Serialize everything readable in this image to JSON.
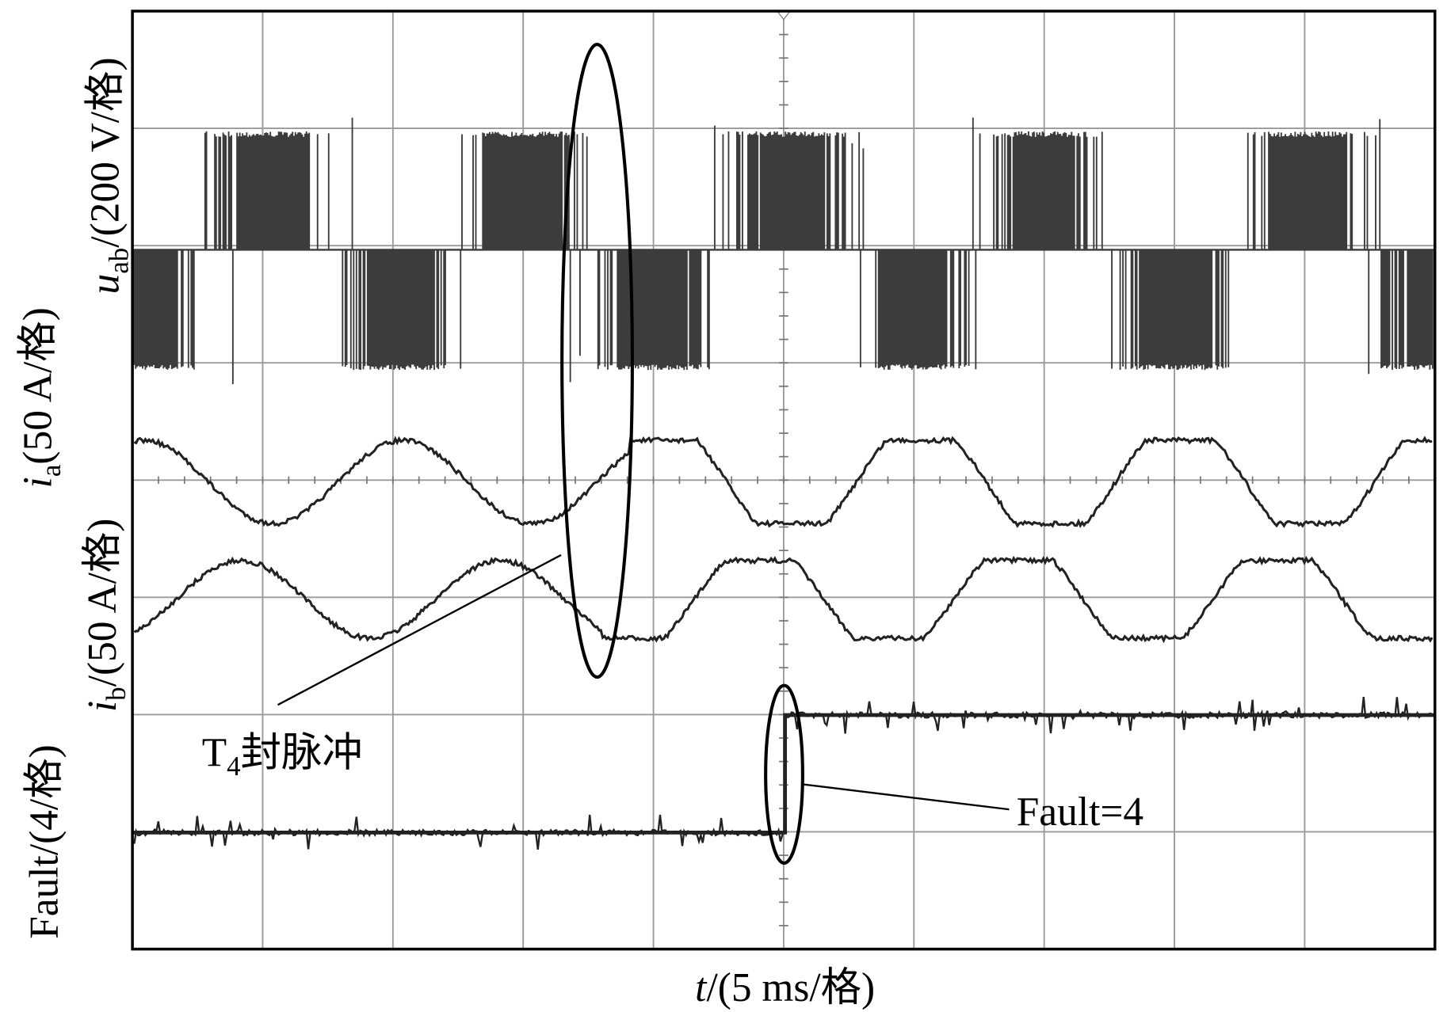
{
  "labels": {
    "uab": {
      "symbol": "u",
      "sub": "ab",
      "unit": "/(200 V/格)"
    },
    "ia": {
      "symbol": "i",
      "sub": "a",
      "unit": "(50 A/格)"
    },
    "ib": {
      "symbol": "i",
      "sub": "b",
      "unit": "/(50 A/格)"
    },
    "fault": "Fault/(4/格)",
    "time": {
      "symbol": "t",
      "unit": "/(5 ms/格)"
    }
  },
  "annotations": {
    "t4": {
      "symbol": "T",
      "sub": "4",
      "text": "封脉冲"
    },
    "fault": "Fault=4"
  }
}
